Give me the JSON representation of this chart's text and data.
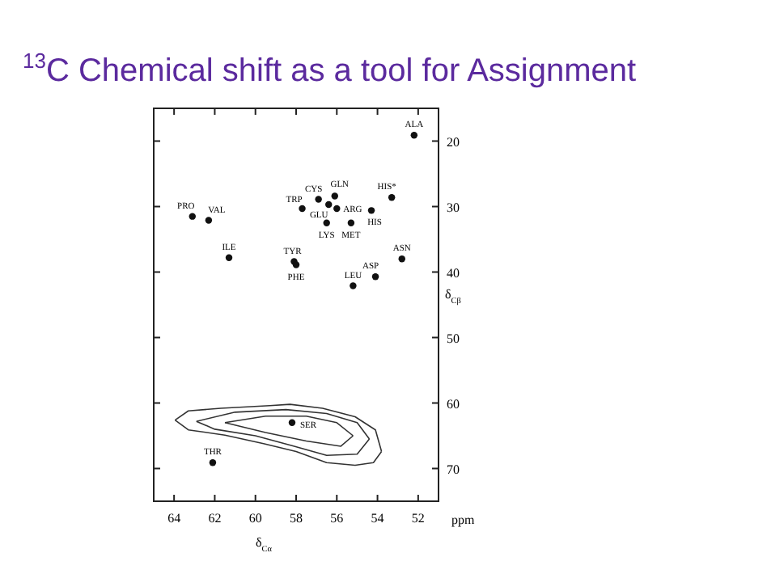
{
  "chart_data": {
    "type": "scatter",
    "title": "$^{13}$C Chemical shift as a tool for Assignment",
    "xlabel": "δ$_{Cα}$",
    "ylabel": "δ$_{Cβ}$",
    "xlim": [
      65,
      51
    ],
    "ylim": [
      75,
      15
    ],
    "xticks": [
      64,
      62,
      60,
      58,
      56,
      54,
      52
    ],
    "yticks": [
      20,
      30,
      40,
      50,
      60,
      70
    ],
    "grid": false,
    "marker": "circle",
    "series": [
      {
        "color": "#111111",
        "x": [
          52.2,
          63.1,
          62.3,
          61.3,
          57.7,
          56.9,
          56.1,
          56.4,
          56.0,
          56.5,
          55.3,
          54.3,
          53.3,
          58.1,
          58.0,
          52.8,
          54.1,
          55.2,
          58.2,
          62.1
        ],
        "values": [
          19.1,
          31.5,
          32.1,
          37.8,
          30.3,
          28.9,
          28.4,
          29.7,
          30.3,
          32.5,
          32.5,
          30.6,
          28.6,
          38.4,
          38.9,
          38.0,
          40.7,
          42.1,
          63.0,
          69.1
        ]
      },
      {
        "type": "line",
        "color": "#333333",
        "marker": "none",
        "x": [
          63.95,
          63.3,
          61.7,
          59.3,
          58.3,
          56.7,
          55.1,
          54.1,
          53.8
        ],
        "values": [
          62.6,
          61.2,
          60.8,
          60.4,
          60.2,
          60.8,
          62.1,
          64.1,
          67.4
        ]
      },
      {
        "type": "line",
        "color": "#333333",
        "marker": "none",
        "x": [
          63.95,
          63.3,
          61.5,
          59.6,
          58.0,
          56.5,
          55.1,
          54.2,
          53.8
        ],
        "values": [
          62.6,
          64.1,
          64.9,
          66.2,
          67.4,
          69.1,
          69.5,
          69.1,
          67.4
        ]
      },
      {
        "type": "line",
        "color": "#333333",
        "marker": "none",
        "x": [
          62.9,
          61.0,
          58.5,
          56.5,
          55.0,
          54.4
        ],
        "values": [
          62.8,
          61.4,
          61.0,
          61.6,
          63.0,
          65.5
        ]
      },
      {
        "type": "line",
        "color": "#333333",
        "marker": "none",
        "x": [
          62.9,
          62.0,
          60.0,
          58.2,
          56.5,
          55.0,
          54.4
        ],
        "values": [
          62.8,
          64.0,
          65.0,
          66.5,
          68.0,
          67.8,
          65.5
        ]
      },
      {
        "type": "line",
        "color": "#333333",
        "marker": "none",
        "x": [
          61.5,
          59.5,
          57.5,
          56.0,
          55.2
        ],
        "values": [
          63.0,
          62.0,
          62.0,
          63.0,
          65.0
        ]
      },
      {
        "type": "line",
        "color": "#333333",
        "marker": "none",
        "x": [
          61.5,
          59.5,
          57.5,
          55.8,
          55.2
        ],
        "values": [
          63.0,
          64.5,
          65.8,
          66.6,
          65.0
        ]
      }
    ],
    "annotations": [
      {
        "text": "ALA",
        "x": 52.2,
        "y": 19.1
      },
      {
        "text": "PRO",
        "x": 63.1,
        "y": 31.5
      },
      {
        "text": "VAL",
        "x": 62.3,
        "y": 32.1
      },
      {
        "text": "ILE",
        "x": 61.3,
        "y": 37.8
      },
      {
        "text": "TRP",
        "x": 57.7,
        "y": 30.3
      },
      {
        "text": "CYS",
        "x": 56.9,
        "y": 28.9
      },
      {
        "text": "GLN",
        "x": 56.1,
        "y": 28.4
      },
      {
        "text": "GLU",
        "x": 56.4,
        "y": 29.7
      },
      {
        "text": "ARG",
        "x": 56.0,
        "y": 30.3
      },
      {
        "text": "LYS",
        "x": 56.5,
        "y": 32.5
      },
      {
        "text": "MET",
        "x": 55.3,
        "y": 32.5
      },
      {
        "text": "HIS",
        "x": 54.3,
        "y": 30.6
      },
      {
        "text": "HIS*",
        "x": 53.3,
        "y": 28.6
      },
      {
        "text": "TYR",
        "x": 58.1,
        "y": 38.4
      },
      {
        "text": "PHE",
        "x": 58.0,
        "y": 38.9
      },
      {
        "text": "ASN",
        "x": 52.8,
        "y": 38.0
      },
      {
        "text": "ASP",
        "x": 54.1,
        "y": 40.7
      },
      {
        "text": "LEU",
        "x": 55.2,
        "y": 42.1
      },
      {
        "text": "SER",
        "x": 58.2,
        "y": 63.0
      },
      {
        "text": "THR",
        "x": 62.1,
        "y": 69.1
      },
      "ppm"
    ]
  }
}
